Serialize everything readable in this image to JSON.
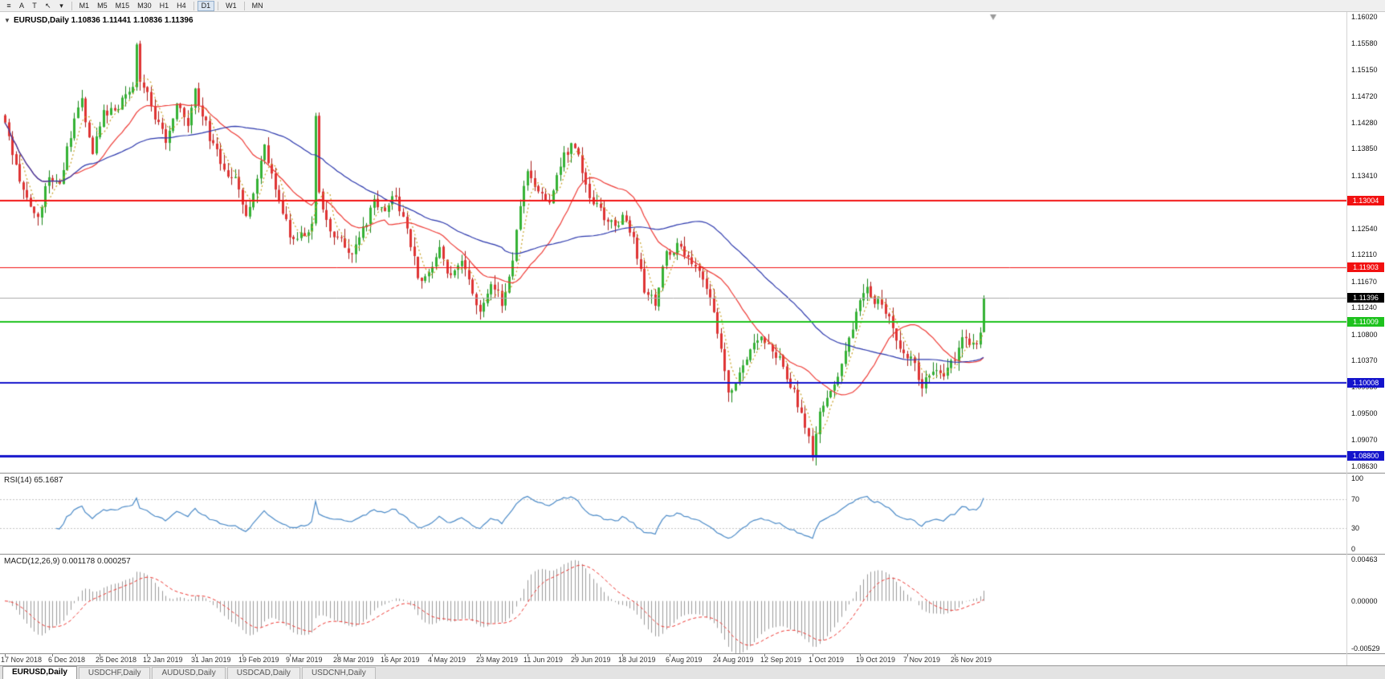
{
  "toolbar": {
    "menu_icon": "≡",
    "buttons": [
      {
        "label": "A"
      },
      {
        "label": "T"
      }
    ],
    "cursor_icon": "↖",
    "caret_icon": "▾",
    "timeframes": [
      "M1",
      "M5",
      "M15",
      "M30",
      "H1",
      "H4",
      "D1",
      "W1",
      "MN"
    ],
    "active_timeframe": "D1"
  },
  "chart": {
    "title": "EURUSD,Daily 1.10836 1.11441 1.10836 1.11396",
    "collapse_icon": "▼"
  },
  "chart_data": {
    "type": "candlestick",
    "symbol": "EURUSD",
    "period": "Daily",
    "ohlc_last": {
      "open": 1.10836,
      "high": 1.11441,
      "low": 1.10836,
      "close": 1.11396
    },
    "y_axis": {
      "min": 1.0863,
      "max": 1.1602,
      "ticks": [
        "1.16020",
        "1.15580",
        "1.15150",
        "1.14720",
        "1.14280",
        "1.13850",
        "1.13410",
        "1.12980",
        "1.12540",
        "1.12110",
        "1.11670",
        "1.11240",
        "1.10800",
        "1.10370",
        "1.09930",
        "1.09500",
        "1.09070",
        "1.08630"
      ]
    },
    "x_axis": {
      "candles_per_label": 13,
      "labels": [
        "17 Nov 2018",
        "6 Dec 2018",
        "25 Dec 2018",
        "12 Jan 2019",
        "31 Jan 2019",
        "19 Feb 2019",
        "9 Mar 2019",
        "28 Mar 2019",
        "16 Apr 2019",
        "4 May 2019",
        "23 May 2019",
        "11 Jun 2019",
        "29 Jun 2019",
        "18 Jul 2019",
        "6 Aug 2019",
        "24 Aug 2019",
        "12 Sep 2019",
        "1 Oct 2019",
        "19 Oct 2019",
        "7 Nov 2019",
        "26 Nov 2019"
      ]
    },
    "num_candles": 269,
    "close_anchors": [
      [
        0,
        1.142
      ],
      [
        3,
        1.1355
      ],
      [
        6,
        1.13
      ],
      [
        9,
        1.1275
      ],
      [
        12,
        1.134
      ],
      [
        15,
        1.133
      ],
      [
        18,
        1.141
      ],
      [
        21,
        1.1465
      ],
      [
        24,
        1.138
      ],
      [
        27,
        1.144
      ],
      [
        30,
        1.1445
      ],
      [
        33,
        1.1475
      ],
      [
        35,
        1.149
      ],
      [
        36,
        1.1565
      ],
      [
        37,
        1.15
      ],
      [
        39,
        1.1475
      ],
      [
        41,
        1.144
      ],
      [
        44,
        1.14
      ],
      [
        47,
        1.146
      ],
      [
        50,
        1.142
      ],
      [
        52,
        1.148
      ],
      [
        54,
        1.144
      ],
      [
        57,
        1.139
      ],
      [
        60,
        1.135
      ],
      [
        63,
        1.133
      ],
      [
        66,
        1.127
      ],
      [
        69,
        1.133
      ],
      [
        71,
        1.1385
      ],
      [
        73,
        1.134
      ],
      [
        76,
        1.128
      ],
      [
        79,
        1.123
      ],
      [
        82,
        1.1245
      ],
      [
        84,
        1.1265
      ],
      [
        85,
        1.1435
      ],
      [
        86,
        1.131
      ],
      [
        89,
        1.1255
      ],
      [
        92,
        1.123
      ],
      [
        95,
        1.121
      ],
      [
        98,
        1.125
      ],
      [
        101,
        1.13
      ],
      [
        104,
        1.129
      ],
      [
        107,
        1.1305
      ],
      [
        110,
        1.126
      ],
      [
        113,
        1.117
      ],
      [
        116,
        1.118
      ],
      [
        119,
        1.1225
      ],
      [
        122,
        1.117
      ],
      [
        125,
        1.1195
      ],
      [
        128,
        1.115
      ],
      [
        130,
        1.112
      ],
      [
        133,
        1.117
      ],
      [
        136,
        1.113
      ],
      [
        139,
        1.12
      ],
      [
        141,
        1.129
      ],
      [
        143,
        1.134
      ],
      [
        146,
        1.1315
      ],
      [
        149,
        1.129
      ],
      [
        152,
        1.136
      ],
      [
        155,
        1.1395
      ],
      [
        157,
        1.137
      ],
      [
        160,
        1.13
      ],
      [
        163,
        1.1285
      ],
      [
        166,
        1.126
      ],
      [
        169,
        1.127
      ],
      [
        172,
        1.124
      ],
      [
        175,
        1.115
      ],
      [
        178,
        1.113
      ],
      [
        181,
        1.121
      ],
      [
        184,
        1.1225
      ],
      [
        187,
        1.12
      ],
      [
        190,
        1.119
      ],
      [
        193,
        1.114
      ],
      [
        196,
        1.106
      ],
      [
        198,
        1.098
      ],
      [
        200,
        1.0995
      ],
      [
        203,
        1.104
      ],
      [
        206,
        1.1075
      ],
      [
        209,
        1.106
      ],
      [
        212,
        1.104
      ],
      [
        215,
        1.1
      ],
      [
        218,
        1.095
      ],
      [
        221,
        1.0885
      ],
      [
        223,
        1.096
      ],
      [
        226,
        1.0985
      ],
      [
        229,
        1.103
      ],
      [
        232,
        1.109
      ],
      [
        234,
        1.113
      ],
      [
        236,
        1.1155
      ],
      [
        239,
        1.113
      ],
      [
        242,
        1.111
      ],
      [
        245,
        1.106
      ],
      [
        248,
        1.104
      ],
      [
        251,
        1.1
      ],
      [
        254,
        1.1025
      ],
      [
        257,
        1.1005
      ],
      [
        260,
        1.1045
      ],
      [
        263,
        1.1078
      ],
      [
        265,
        1.106
      ],
      [
        267,
        1.108
      ],
      [
        268,
        1.114
      ]
    ],
    "horizontal_lines": [
      {
        "price": 1.13004,
        "label": "1.13004",
        "color": "#f21111",
        "width": 2
      },
      {
        "price": 1.11903,
        "label": "1.11903",
        "color": "#f21111",
        "width": 1
      },
      {
        "price": 1.11009,
        "label": "1.11009",
        "color": "#1dc21d",
        "width": 2
      },
      {
        "price": 1.10008,
        "label": "1.10008",
        "color": "#1414cc",
        "width": 2
      },
      {
        "price": 1.088,
        "label": "1.08800",
        "color": "#1414cc",
        "width": 3
      }
    ],
    "bid_line": {
      "price": 1.11396,
      "label": "1.11396",
      "box_color": "#000000",
      "line_color": "#aaaaaa"
    },
    "moving_averages": [
      {
        "name": "ma-fast-dotted",
        "period": 5,
        "color": "#c9a227",
        "dash": [
          2,
          3
        ]
      },
      {
        "name": "ma-medium",
        "period": 20,
        "color": "#ef3b36",
        "dash": null
      },
      {
        "name": "ma-slow",
        "period": 52,
        "color": "#2c38ad",
        "dash": null
      }
    ],
    "colors": {
      "background": "#ffffff",
      "bull": "#35b235",
      "bull_border": "#1c851c",
      "bear": "#df3434",
      "bear_border": "#a81e1c",
      "shift_marker": "#9a9a9a"
    },
    "rsi": {
      "label": "RSI(14) 65.1687",
      "period": 14,
      "value": 65.1687,
      "line_color": "#4c8bc8",
      "range": [
        0,
        100
      ],
      "dashed_levels": [
        70,
        30
      ],
      "levels": [
        {
          "v": 100,
          "label": "100"
        },
        {
          "v": 70,
          "label": "70"
        },
        {
          "v": 30,
          "label": "30"
        },
        {
          "v": 0,
          "label": "0"
        }
      ]
    },
    "macd": {
      "label": "MACD(12,26,9) 0.001178 0.000257",
      "fast": 12,
      "slow": 26,
      "signal": 9,
      "main_value": 0.001178,
      "signal_value": 0.000257,
      "histogram_color": "#9c9c9c",
      "signal_color": "#ef3b36",
      "range": [
        -0.00529,
        0.00463
      ],
      "scale": [
        {
          "v": 0.00463,
          "label": "0.00463"
        },
        {
          "v": 0,
          "label": "0.00000"
        },
        {
          "v": -0.00529,
          "label": "-0.00529"
        }
      ]
    }
  },
  "tabs": [
    {
      "label": "EURUSD,Daily",
      "active": true
    },
    {
      "label": "USDCHF,Daily",
      "active": false
    },
    {
      "label": "AUDUSD,Daily",
      "active": false
    },
    {
      "label": "USDCAD,Daily",
      "active": false
    },
    {
      "label": "USDCNH,Daily",
      "active": false
    }
  ]
}
